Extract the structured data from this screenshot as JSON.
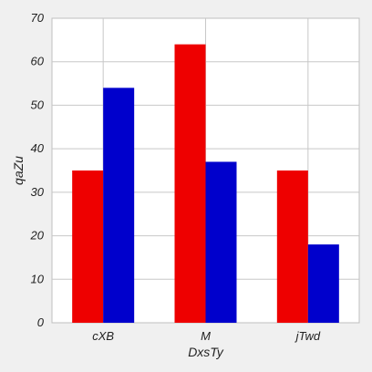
{
  "chart_data": {
    "type": "bar",
    "title": "",
    "xlabel": "DxsTy",
    "ylabel": "qaZu",
    "categories": [
      "cXB",
      "M",
      "jTwd"
    ],
    "series": [
      {
        "values": [
          35,
          64,
          35
        ],
        "color": "#ee0000"
      },
      {
        "values": [
          54,
          37,
          18
        ],
        "color": "#0000cc"
      }
    ],
    "ylim": [
      0,
      70
    ],
    "yticks": [
      0,
      10,
      20,
      30,
      40,
      50,
      60,
      70
    ],
    "grid": true,
    "legend": "none"
  }
}
